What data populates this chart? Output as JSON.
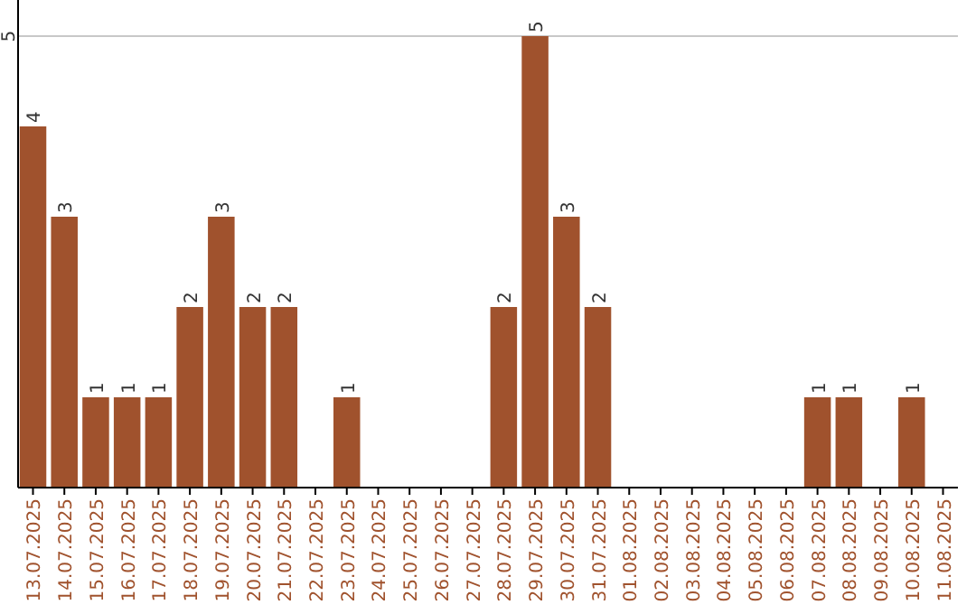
{
  "chart_data": {
    "type": "bar",
    "categories": [
      "13.07.2025",
      "14.07.2025",
      "15.07.2025",
      "16.07.2025",
      "17.07.2025",
      "18.07.2025",
      "19.07.2025",
      "20.07.2025",
      "21.07.2025",
      "22.07.2025",
      "23.07.2025",
      "24.07.2025",
      "25.07.2025",
      "26.07.2025",
      "27.07.2025",
      "28.07.2025",
      "29.07.2025",
      "30.07.2025",
      "31.07.2025",
      "01.08.2025",
      "02.08.2025",
      "03.08.2025",
      "04.08.2025",
      "05.08.2025",
      "06.08.2025",
      "07.08.2025",
      "08.08.2025",
      "09.08.2025",
      "10.08.2025",
      "11.08.2025"
    ],
    "values": [
      4,
      3,
      1,
      1,
      1,
      2,
      3,
      2,
      2,
      0,
      1,
      0,
      0,
      0,
      0,
      2,
      5,
      3,
      2,
      0,
      0,
      0,
      0,
      0,
      0,
      1,
      1,
      0,
      1,
      0
    ],
    "value_labels": [
      "4",
      "3",
      "1",
      "1",
      "1",
      "2",
      "3",
      "2",
      "2",
      null,
      "1",
      null,
      null,
      null,
      null,
      "2",
      "5",
      "3",
      "2",
      null,
      null,
      null,
      null,
      null,
      null,
      "1",
      "1",
      null,
      "1",
      null
    ],
    "color": "#a0522d",
    "ylim": [
      0,
      5.4
    ],
    "yticks": [
      5
    ],
    "grid": "y"
  }
}
